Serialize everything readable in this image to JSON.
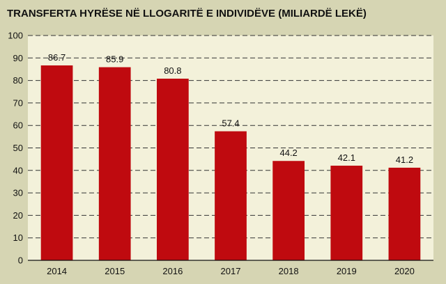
{
  "chart_data": {
    "type": "bar",
    "title": "TRANSFERTA HYRËSE NË LLOGARITË E INDIVIDËVE (MILIARDË LEKË)",
    "categories": [
      "2014",
      "2015",
      "2016",
      "2017",
      "2018",
      "2019",
      "2020"
    ],
    "values": [
      86.7,
      85.9,
      80.8,
      57.4,
      44.2,
      42.1,
      41.2
    ],
    "value_labels": [
      "86.7",
      "85.9",
      "80.8",
      "57.4",
      "44.2",
      "42.1",
      "41.2"
    ],
    "xlabel": "",
    "ylabel": "",
    "ylim": [
      0,
      100
    ],
    "yticks": [
      "0",
      "10",
      "20",
      "30",
      "40",
      "50",
      "60",
      "70",
      "80",
      "90",
      "100"
    ],
    "grid": true,
    "colors": {
      "bar": "#bf0a0f",
      "background": "#d6d5b3",
      "plot_background": "#f3f1da",
      "grid": "#333333"
    }
  }
}
